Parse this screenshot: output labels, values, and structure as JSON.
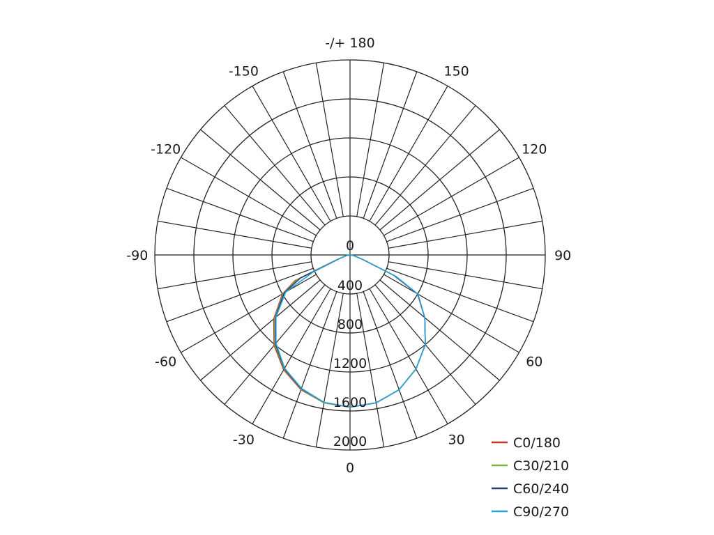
{
  "chart_data": {
    "type": "polar",
    "title": "",
    "angle_labels": [
      {
        "angle": 0,
        "text": "0"
      },
      {
        "angle": 30,
        "text": "30"
      },
      {
        "angle": -30,
        "text": "-30"
      },
      {
        "angle": 60,
        "text": "60"
      },
      {
        "angle": -60,
        "text": "-60"
      },
      {
        "angle": 90,
        "text": "90"
      },
      {
        "angle": -90,
        "text": "-90"
      },
      {
        "angle": 120,
        "text": "120"
      },
      {
        "angle": -120,
        "text": "-120"
      },
      {
        "angle": 150,
        "text": "150"
      },
      {
        "angle": -150,
        "text": "-150"
      },
      {
        "angle": 180,
        "text": "-/+ 180"
      }
    ],
    "radial_ticks": [
      0,
      400,
      800,
      1200,
      1600,
      2000
    ],
    "radial_range": [
      0,
      2000
    ],
    "angle_grid_step_deg": 10,
    "grid": true,
    "legend_position": "bottom-right",
    "series": [
      {
        "name": "C0/180",
        "color": "#c0392b",
        "angles": [
          -90,
          -80,
          -70,
          -65,
          -60,
          -50,
          -40,
          -30,
          -20,
          -10,
          0,
          10,
          20,
          30,
          40,
          50,
          60,
          65,
          70,
          80,
          90
        ],
        "values": [
          0,
          40,
          150,
          620,
          800,
          1020,
          1210,
          1360,
          1470,
          1540,
          1560,
          1540,
          1470,
          1350,
          1200,
          1000,
          800,
          500,
          150,
          40,
          0
        ]
      },
      {
        "name": "C30/210",
        "color": "#7cb342",
        "angles": [
          -90,
          -80,
          -70,
          -65,
          -60,
          -50,
          -40,
          -30,
          -20,
          -10,
          0,
          10,
          20,
          30,
          40,
          50,
          60,
          65,
          70,
          80,
          90
        ],
        "values": [
          0,
          40,
          140,
          600,
          790,
          1010,
          1200,
          1350,
          1465,
          1540,
          1560,
          1540,
          1470,
          1350,
          1200,
          1000,
          800,
          500,
          150,
          40,
          0
        ]
      },
      {
        "name": "C60/240",
        "color": "#2c3e7a",
        "angles": [
          -90,
          -80,
          -70,
          -65,
          -60,
          -50,
          -40,
          -30,
          -20,
          -10,
          0,
          10,
          20,
          30,
          40,
          50,
          60,
          65,
          70,
          80,
          90
        ],
        "values": [
          0,
          40,
          130,
          560,
          780,
          1000,
          1190,
          1345,
          1460,
          1535,
          1560,
          1540,
          1470,
          1350,
          1200,
          1000,
          800,
          500,
          150,
          40,
          0
        ]
      },
      {
        "name": "C90/270",
        "color": "#29a3d9",
        "angles": [
          -90,
          -80,
          -70,
          -65,
          -60,
          -50,
          -40,
          -30,
          -20,
          -10,
          0,
          10,
          20,
          30,
          40,
          50,
          60,
          65,
          70,
          80,
          90
        ],
        "values": [
          0,
          40,
          120,
          420,
          760,
          990,
          1180,
          1340,
          1455,
          1535,
          1560,
          1540,
          1470,
          1350,
          1200,
          1000,
          805,
          520,
          150,
          40,
          0
        ]
      }
    ]
  }
}
